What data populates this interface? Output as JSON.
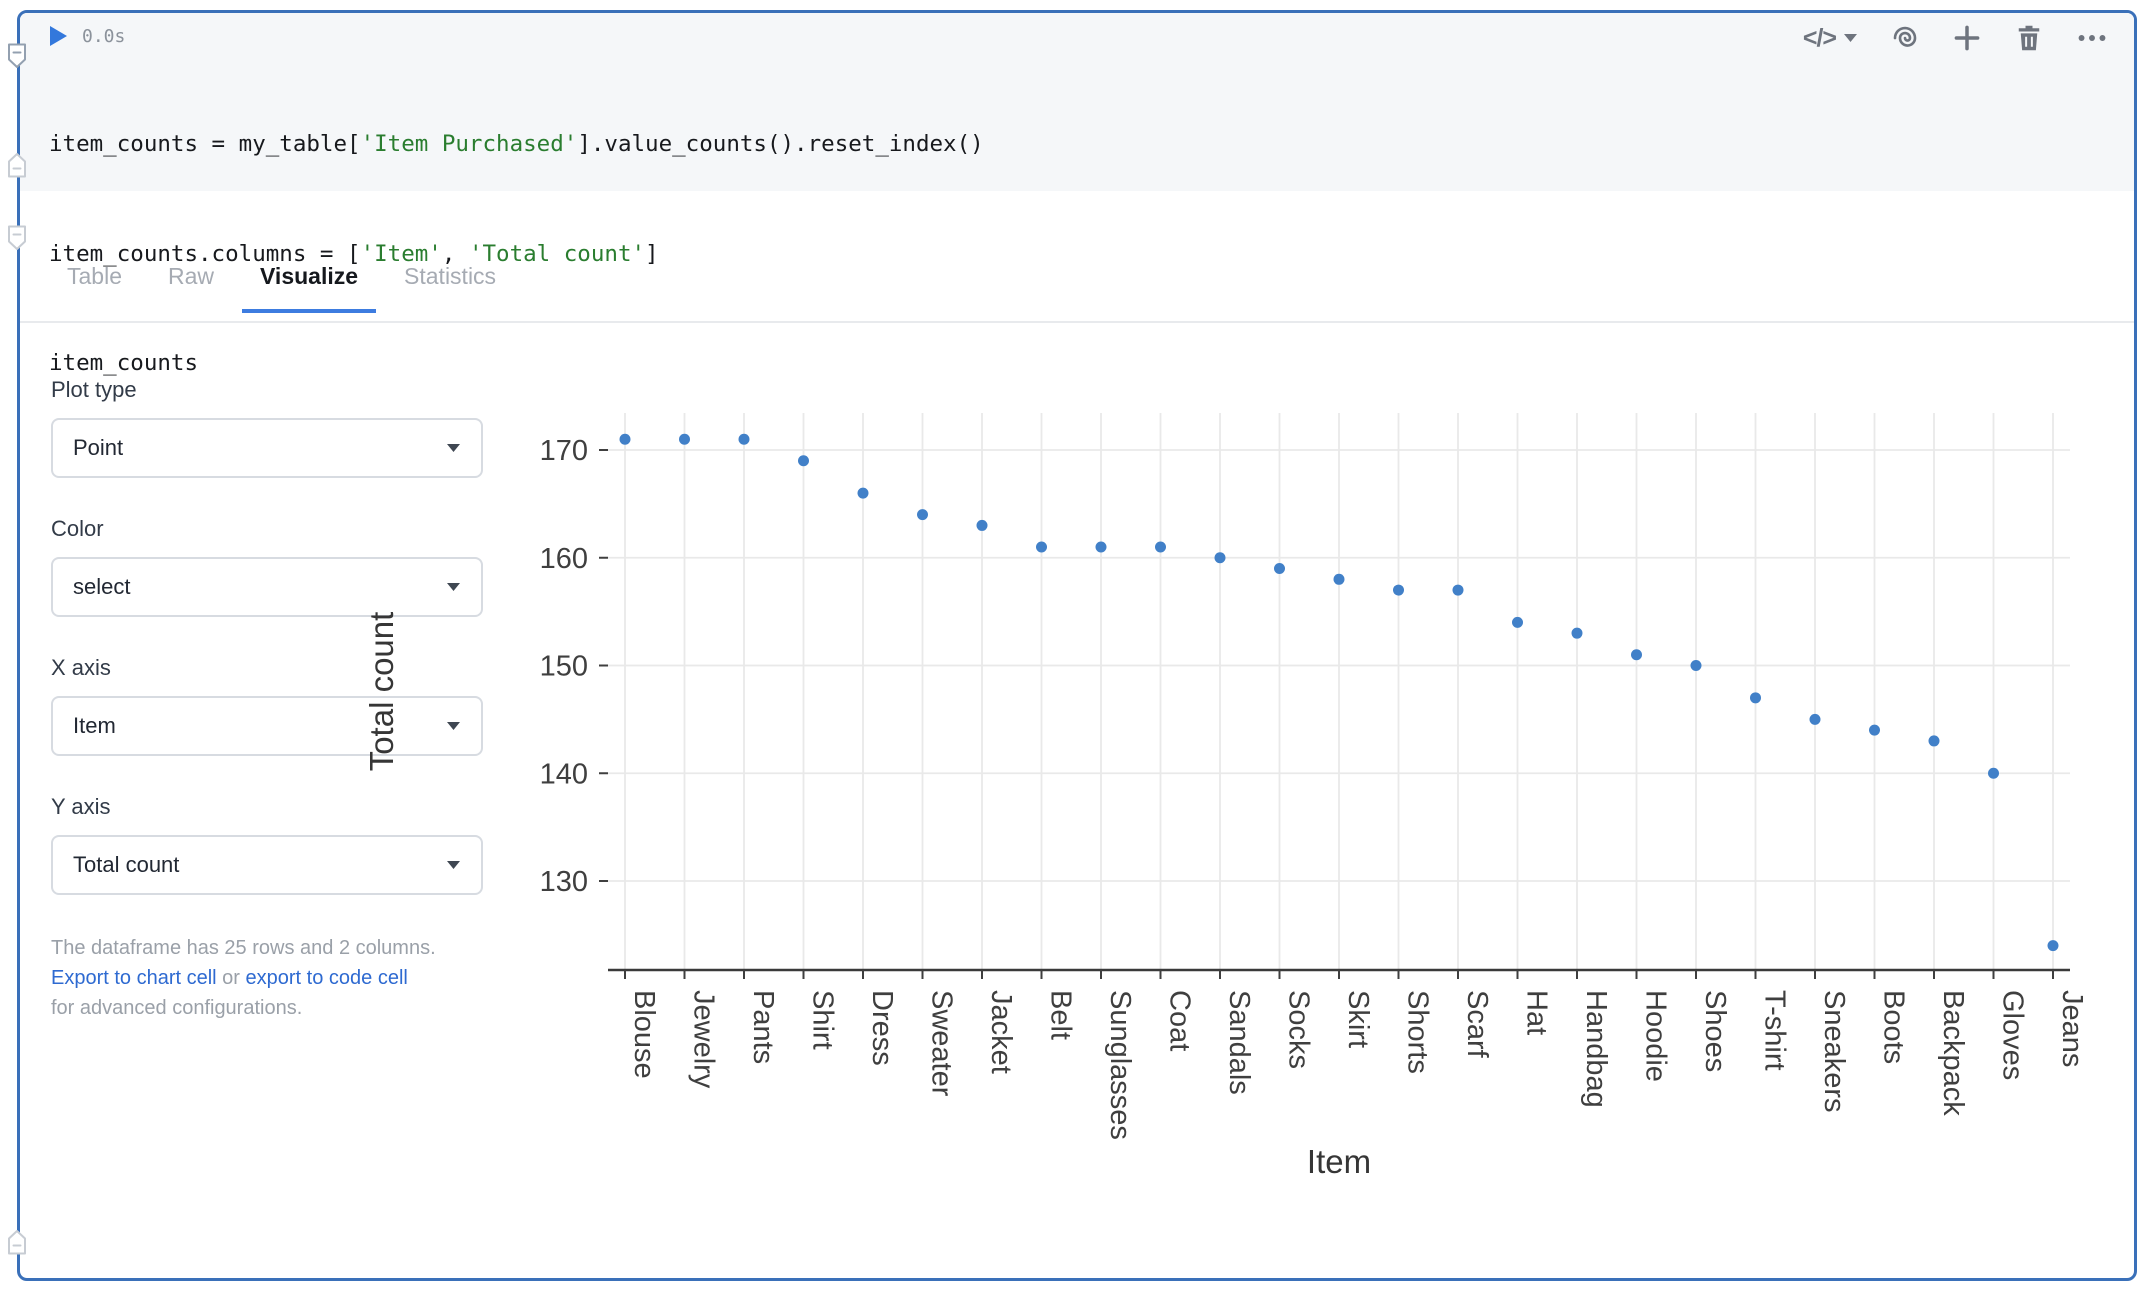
{
  "cell": {
    "run_time": "0.0s",
    "code": {
      "lines": [
        {
          "segments": [
            {
              "type": "plain",
              "text": "item_counts = my_table["
            },
            {
              "type": "string",
              "text": "'Item Purchased'"
            },
            {
              "type": "plain",
              "text": "].value_counts().reset_index()"
            }
          ]
        },
        {
          "segments": [
            {
              "type": "plain",
              "text": "item_counts.columns = ["
            },
            {
              "type": "string",
              "text": "'Item'"
            },
            {
              "type": "plain",
              "text": ", "
            },
            {
              "type": "string",
              "text": "'Total count'"
            },
            {
              "type": "plain",
              "text": "]"
            }
          ]
        },
        {
          "segments": [
            {
              "type": "plain",
              "text": "item_counts"
            }
          ]
        }
      ]
    }
  },
  "toolbar": {
    "block_type_glyph": "</>",
    "icons": [
      "code-block-type-chevron",
      "spiral-ai-icon",
      "add-block-icon",
      "trash-icon",
      "more-actions-icon"
    ]
  },
  "tabs": [
    {
      "label": "Table",
      "active": false
    },
    {
      "label": "Raw",
      "active": false
    },
    {
      "label": "Visualize",
      "active": true
    },
    {
      "label": "Statistics",
      "active": false
    }
  ],
  "controls": {
    "plot_type": {
      "label": "Plot type",
      "value": "Point"
    },
    "color": {
      "label": "Color",
      "value": "select"
    },
    "x_axis": {
      "label": "X axis",
      "value": "Item"
    },
    "y_axis": {
      "label": "Y axis",
      "value": "Total count"
    }
  },
  "note": {
    "text": "The dataframe has 25 rows and 2 columns.",
    "link_chart": "Export to chart cell",
    "connector": " or ",
    "link_code": "export to code cell",
    "suffix": "for advanced configurations."
  },
  "chart_data": {
    "type": "scatter",
    "title": "",
    "xlabel": "Item",
    "ylabel": "Total count",
    "categories": [
      "Blouse",
      "Jewelry",
      "Pants",
      "Shirt",
      "Dress",
      "Sweater",
      "Jacket",
      "Belt",
      "Sunglasses",
      "Coat",
      "Sandals",
      "Socks",
      "Skirt",
      "Shorts",
      "Scarf",
      "Hat",
      "Handbag",
      "Hoodie",
      "Shoes",
      "T-shirt",
      "Sneakers",
      "Boots",
      "Backpack",
      "Gloves",
      "Jeans"
    ],
    "values": [
      171,
      171,
      171,
      169,
      166,
      164,
      163,
      161,
      161,
      161,
      160,
      159,
      158,
      157,
      157,
      154,
      153,
      151,
      150,
      147,
      145,
      144,
      143,
      140,
      124
    ],
    "yticks": [
      130,
      140,
      150,
      160,
      170
    ],
    "ylim": [
      121.7,
      173.4
    ],
    "grid": true,
    "legend": "none",
    "point_color": "#4180c8"
  },
  "colors": {
    "selection_border": "#3a70b9",
    "tab_underline": "#3d7ce0",
    "link_blue": "#2e6ad1",
    "point_blue": "#4180c8",
    "code_string_green": "#2a7d2f",
    "run_button_blue": "#3378dc",
    "code_bg": "#f5f7f9"
  }
}
